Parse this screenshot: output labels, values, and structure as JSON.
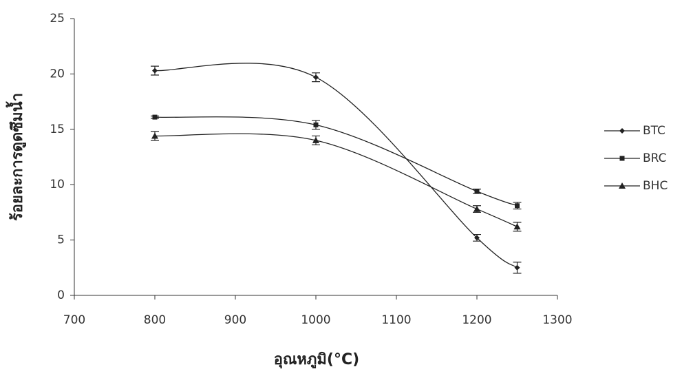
{
  "chart_data": {
    "type": "line",
    "x_label": "อุณหภูมิ(°C)",
    "y_label": "ร้อยละการดูดซึมน้ำ",
    "x": [
      800,
      1000,
      1200,
      1250
    ],
    "series": [
      {
        "name": "BTC",
        "color": "#222222",
        "marker": "diamond",
        "values": [
          20.3,
          19.7,
          5.2,
          2.5
        ],
        "errors": [
          0.4,
          0.4,
          0.3,
          0.5
        ]
      },
      {
        "name": "BRC",
        "color": "#222222",
        "marker": "square",
        "values": [
          16.1,
          15.4,
          9.4,
          8.1
        ],
        "errors": [
          0.1,
          0.4,
          0.2,
          0.3
        ]
      },
      {
        "name": "BHC",
        "color": "#222222",
        "marker": "triangle",
        "values": [
          14.4,
          14.0,
          7.8,
          6.2
        ],
        "errors": [
          0.4,
          0.4,
          0.3,
          0.4
        ]
      }
    ],
    "xlim": [
      700,
      1300
    ],
    "xticks": [
      700,
      800,
      900,
      1000,
      1100,
      1200,
      1300
    ],
    "ylim": [
      0,
      25
    ],
    "yticks": [
      0,
      5,
      10,
      15,
      20,
      25
    ],
    "legend": "right"
  }
}
